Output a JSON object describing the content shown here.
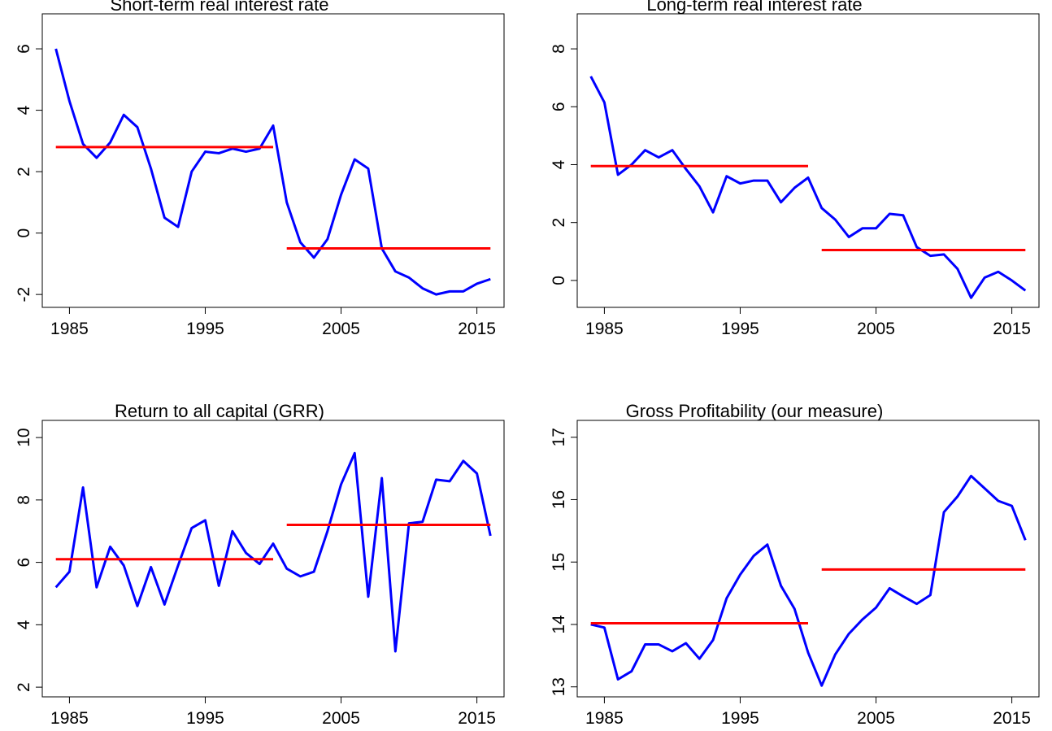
{
  "chart_data": [
    {
      "type": "line",
      "title": "Short-term real interest rate",
      "x": [
        1984,
        1985,
        1986,
        1987,
        1988,
        1989,
        1990,
        1991,
        1992,
        1993,
        1994,
        1995,
        1996,
        1997,
        1998,
        1999,
        2000,
        2001,
        2002,
        2003,
        2004,
        2005,
        2006,
        2007,
        2008,
        2009,
        2010,
        2011,
        2012,
        2013,
        2014,
        2015,
        2016
      ],
      "series": [
        {
          "color": "#0000ff",
          "values": [
            6.0,
            4.3,
            2.9,
            2.45,
            2.95,
            3.85,
            3.45,
            2.1,
            0.5,
            0.2,
            2.0,
            2.65,
            2.6,
            2.75,
            2.65,
            2.75,
            3.5,
            1.0,
            -0.3,
            -0.8,
            -0.2,
            1.25,
            2.4,
            2.1,
            -0.5,
            -1.25,
            -1.45,
            -1.8,
            -2.0,
            -1.9,
            -1.9,
            -1.65,
            -1.5
          ]
        },
        {
          "color": "#ff0000",
          "values": [
            2.8,
            2.8,
            2.8,
            2.8,
            2.8,
            2.8,
            2.8,
            2.8,
            2.8,
            2.8,
            2.8,
            2.8,
            2.8,
            2.8,
            2.8,
            2.8,
            2.8,
            null,
            null,
            null,
            null,
            null,
            null,
            null,
            null,
            null,
            null,
            null,
            null,
            null,
            null,
            null,
            null
          ]
        },
        {
          "color": "#ff0000",
          "values": [
            null,
            null,
            null,
            null,
            null,
            null,
            null,
            null,
            null,
            null,
            null,
            null,
            null,
            null,
            null,
            null,
            null,
            -0.5,
            -0.5,
            -0.5,
            -0.5,
            -0.5,
            -0.5,
            -0.5,
            -0.5,
            -0.5,
            -0.5,
            -0.5,
            -0.5,
            -0.5,
            -0.5,
            -0.5,
            -0.5
          ]
        }
      ],
      "xlim": [
        1983,
        2017
      ],
      "xticks": [
        1985,
        1995,
        2005,
        2015
      ],
      "ylim": [
        -2.42,
        7.14
      ],
      "yticks": [
        -2,
        0,
        2,
        4,
        6
      ]
    },
    {
      "type": "line",
      "title": "Long-term real interest rate",
      "x": [
        1984,
        1985,
        1986,
        1987,
        1988,
        1989,
        1990,
        1991,
        1992,
        1993,
        1994,
        1995,
        1996,
        1997,
        1998,
        1999,
        2000,
        2001,
        2002,
        2003,
        2004,
        2005,
        2006,
        2007,
        2008,
        2009,
        2010,
        2011,
        2012,
        2013,
        2014,
        2015,
        2016
      ],
      "series": [
        {
          "color": "#0000ff",
          "values": [
            7.05,
            6.15,
            3.65,
            4.0,
            4.5,
            4.25,
            4.5,
            3.85,
            3.25,
            2.35,
            3.6,
            3.35,
            3.45,
            3.45,
            2.7,
            3.2,
            3.55,
            2.5,
            2.1,
            1.5,
            1.8,
            1.8,
            2.3,
            2.25,
            1.15,
            0.85,
            0.9,
            0.4,
            -0.6,
            0.1,
            0.3,
            0.0,
            -0.35
          ]
        },
        {
          "color": "#ff0000",
          "values": [
            3.95,
            3.95,
            3.95,
            3.95,
            3.95,
            3.95,
            3.95,
            3.95,
            3.95,
            3.95,
            3.95,
            3.95,
            3.95,
            3.95,
            3.95,
            3.95,
            3.95,
            null,
            null,
            null,
            null,
            null,
            null,
            null,
            null,
            null,
            null,
            null,
            null,
            null,
            null,
            null,
            null
          ]
        },
        {
          "color": "#ff0000",
          "values": [
            null,
            null,
            null,
            null,
            null,
            null,
            null,
            null,
            null,
            null,
            null,
            null,
            null,
            null,
            null,
            null,
            null,
            1.05,
            1.05,
            1.05,
            1.05,
            1.05,
            1.05,
            1.05,
            1.05,
            1.05,
            1.05,
            1.05,
            1.05,
            1.05,
            1.05,
            1.05,
            1.05
          ]
        }
      ],
      "xlim": [
        1983,
        2017
      ],
      "xticks": [
        1985,
        1995,
        2005,
        2015
      ],
      "ylim": [
        -0.93,
        9.21
      ],
      "yticks": [
        0,
        2,
        4,
        6,
        8
      ]
    },
    {
      "type": "line",
      "title": "Return to all capital (GRR)",
      "x": [
        1984,
        1985,
        1986,
        1987,
        1988,
        1989,
        1990,
        1991,
        1992,
        1993,
        1994,
        1995,
        1996,
        1997,
        1998,
        1999,
        2000,
        2001,
        2002,
        2003,
        2004,
        2005,
        2006,
        2007,
        2008,
        2009,
        2010,
        2011,
        2012,
        2013,
        2014,
        2015,
        2016
      ],
      "series": [
        {
          "color": "#0000ff",
          "values": [
            5.2,
            5.7,
            8.4,
            5.2,
            6.5,
            5.9,
            4.6,
            5.85,
            4.65,
            5.9,
            7.1,
            7.35,
            5.25,
            7.0,
            6.3,
            5.95,
            6.6,
            5.8,
            5.55,
            5.7,
            7.0,
            8.5,
            9.5,
            4.9,
            8.7,
            3.15,
            7.25,
            7.3,
            8.65,
            8.6,
            9.25,
            8.85,
            6.85
          ]
        },
        {
          "color": "#ff0000",
          "values": [
            6.1,
            6.1,
            6.1,
            6.1,
            6.1,
            6.1,
            6.1,
            6.1,
            6.1,
            6.1,
            6.1,
            6.1,
            6.1,
            6.1,
            6.1,
            6.1,
            6.1,
            null,
            null,
            null,
            null,
            null,
            null,
            null,
            null,
            null,
            null,
            null,
            null,
            null,
            null,
            null,
            null
          ]
        },
        {
          "color": "#ff0000",
          "values": [
            null,
            null,
            null,
            null,
            null,
            null,
            null,
            null,
            null,
            null,
            null,
            null,
            null,
            null,
            null,
            null,
            null,
            7.2,
            7.2,
            7.2,
            7.2,
            7.2,
            7.2,
            7.2,
            7.2,
            7.2,
            7.2,
            7.2,
            7.2,
            7.2,
            7.2,
            7.2,
            7.2
          ]
        }
      ],
      "xlim": [
        1983,
        2017
      ],
      "xticks": [
        1985,
        1995,
        2005,
        2015
      ],
      "ylim": [
        1.69,
        10.55
      ],
      "yticks": [
        2,
        4,
        6,
        8,
        10
      ]
    },
    {
      "type": "line",
      "title": "Gross Profitability (our measure)",
      "x": [
        1984,
        1985,
        1986,
        1987,
        1988,
        1989,
        1990,
        1991,
        1992,
        1993,
        1994,
        1995,
        1996,
        1997,
        1998,
        1999,
        2000,
        2001,
        2002,
        2003,
        2004,
        2005,
        2006,
        2007,
        2008,
        2009,
        2010,
        2011,
        2012,
        2013,
        2014,
        2015,
        2016
      ],
      "series": [
        {
          "color": "#0000ff",
          "values": [
            14.0,
            13.95,
            13.12,
            13.25,
            13.68,
            13.68,
            13.57,
            13.7,
            13.45,
            13.75,
            14.42,
            14.8,
            15.1,
            15.28,
            14.62,
            14.25,
            13.55,
            13.02,
            13.52,
            13.85,
            14.08,
            14.27,
            14.58,
            14.45,
            14.33,
            14.47,
            15.8,
            16.05,
            16.38,
            16.18,
            15.98,
            15.9,
            15.35
          ]
        },
        {
          "color": "#ff0000",
          "values": [
            14.02,
            14.02,
            14.02,
            14.02,
            14.02,
            14.02,
            14.02,
            14.02,
            14.02,
            14.02,
            14.02,
            14.02,
            14.02,
            14.02,
            14.02,
            14.02,
            14.02,
            null,
            null,
            null,
            null,
            null,
            null,
            null,
            null,
            null,
            null,
            null,
            null,
            null,
            null,
            null,
            null
          ]
        },
        {
          "color": "#ff0000",
          "values": [
            null,
            null,
            null,
            null,
            null,
            null,
            null,
            null,
            null,
            null,
            null,
            null,
            null,
            null,
            null,
            null,
            null,
            14.88,
            14.88,
            14.88,
            14.88,
            14.88,
            14.88,
            14.88,
            14.88,
            14.88,
            14.88,
            14.88,
            14.88,
            14.88,
            14.88,
            14.88,
            14.88
          ]
        }
      ],
      "xlim": [
        1983,
        2017
      ],
      "xticks": [
        1985,
        1995,
        2005,
        2015
      ],
      "ylim": [
        12.84,
        17.27
      ],
      "yticks": [
        13,
        14,
        15,
        16,
        17
      ]
    }
  ]
}
